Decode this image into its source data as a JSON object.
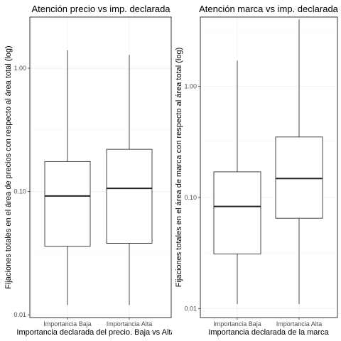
{
  "chart_data": [
    {
      "type": "boxplot",
      "title": "Atención precio vs imp. declarada",
      "xlabel": "Importancia declarada del precio. Baja vs Alta",
      "ylabel": "Fijaciones totales en el área de precios con respecto al área total (log)",
      "yscale": "log10",
      "ylim": [
        0.0095,
        2.6
      ],
      "yticks": [
        0.01,
        0.1,
        1.0
      ],
      "ytick_labels": [
        "0.01",
        "0.10",
        "1.00"
      ],
      "grid": true,
      "categories": [
        "Importancia Baja",
        "Importancia Alta"
      ],
      "boxes": [
        {
          "min": 0.012,
          "q1": 0.036,
          "median": 0.092,
          "q3": 0.175,
          "max": 1.4
        },
        {
          "min": 0.012,
          "q1": 0.038,
          "median": 0.106,
          "q3": 0.22,
          "max": 1.28
        }
      ]
    },
    {
      "type": "boxplot",
      "title": "Atención marca vs imp. declarada",
      "xlabel": "Importancia declarada de la marca",
      "ylabel": "Fijaciones totales en el área de marca con respecto al área total (log)",
      "yscale": "log10",
      "ylim": [
        0.0083,
        4.2
      ],
      "yticks": [
        0.01,
        0.1,
        1.0
      ],
      "ytick_labels": [
        "0.01",
        "0.10",
        "1.00"
      ],
      "grid": true,
      "categories": [
        "Importancia Baja",
        "Importancia Alta"
      ],
      "boxes": [
        {
          "min": 0.011,
          "q1": 0.031,
          "median": 0.083,
          "q3": 0.17,
          "max": 1.7
        },
        {
          "min": 0.011,
          "q1": 0.065,
          "median": 0.148,
          "q3": 0.35,
          "max": 4.0
        }
      ]
    }
  ]
}
